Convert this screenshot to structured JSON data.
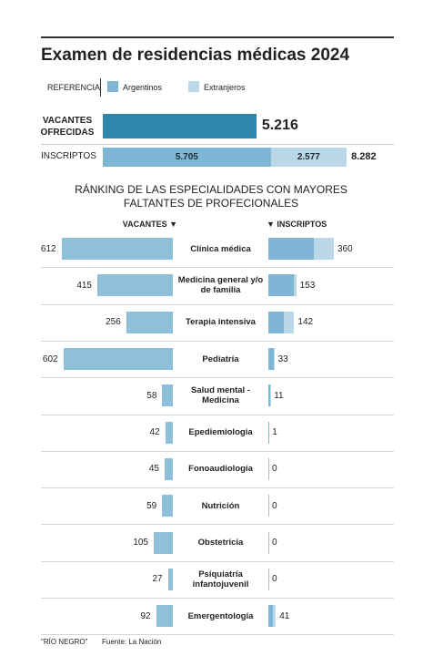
{
  "chart_data": {
    "type": "bar",
    "title": "Examen de residencias médicas 2024",
    "legend_title": "REFERENCIA",
    "offered": {
      "label": "VACANTES OFRECIDAS",
      "value": 5216,
      "value_label": "5.216",
      "color": "#2e86ad"
    },
    "applicants": {
      "label": "INSCRIPTOS",
      "series": [
        {
          "name": "Argentinos",
          "color": "#7fb6d5",
          "value": 5705,
          "value_label": "5.705"
        },
        {
          "name": "Extranjeros",
          "color": "#bad8e8",
          "value": 2577,
          "value_label": "2.577"
        }
      ],
      "total": 8282,
      "total_label": "8.282"
    },
    "ranking_title": "RÁNKING DE LAS ESPECIALIDADES CON MAYORES FALTANTES DE PROFECIONALES",
    "left_header": "VACANTES ▼",
    "right_header": "▼ INSCRIPTOS",
    "vacantes_color": "#8ebfdb",
    "categories": [
      "Clínica médica",
      "Medicina general y/o de familia",
      "Terapia intensiva",
      "Pediatría",
      "Salud mental - Medicina",
      "Epediemiología",
      "Fonoaudiología",
      "Nutrición",
      "Obstetricia",
      "Psiquiatría infantojuvenil",
      "Emergentología"
    ],
    "vacantes": [
      612,
      415,
      256,
      602,
      58,
      42,
      45,
      59,
      105,
      27,
      92
    ],
    "inscriptos_argentinos": [
      250,
      140,
      86,
      28,
      9,
      1,
      0,
      0,
      0,
      0,
      26
    ],
    "inscriptos_extranjeros": [
      110,
      13,
      56,
      5,
      2,
      0,
      0,
      0,
      0,
      0,
      15
    ],
    "inscriptos_total": [
      360,
      153,
      142,
      33,
      11,
      1,
      0,
      0,
      0,
      0,
      41
    ]
  },
  "footer": {
    "credit": "\"RÍO NEGRO\"",
    "source": "Fuente: La Nación"
  }
}
